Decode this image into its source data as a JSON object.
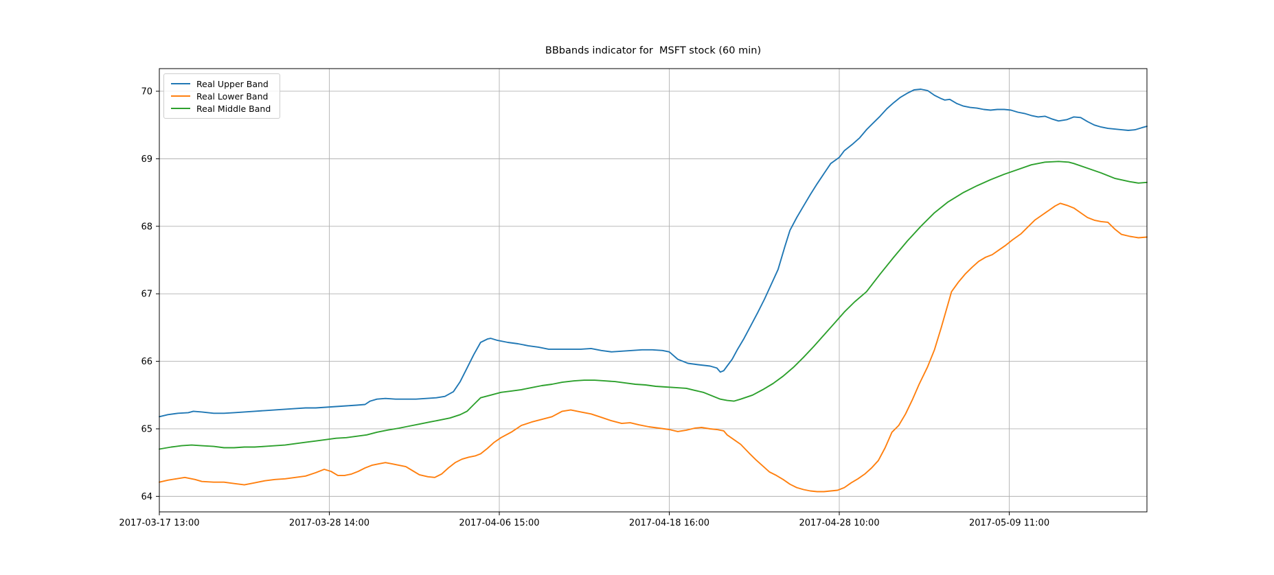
{
  "page": {
    "background": "#ffffff"
  },
  "chart_data": {
    "type": "line",
    "title": "BBbands indicator for  MSFT stock (60 min)",
    "xlabel": "",
    "ylabel": "",
    "grid": true,
    "grid_color": "#b0b0b0",
    "spine_color": "#000000",
    "legend": {
      "position": "upper-left",
      "entries": [
        "Real Upper Band",
        "Real Lower Band",
        "Real Middle Band"
      ]
    },
    "x_axis": {
      "unit": "tick-interval units (0 = first labeled tick, 1 per labeled tick, 60-min bars)",
      "range": [
        0,
        5.81
      ],
      "tick_positions": [
        0,
        1,
        2,
        3,
        4,
        5
      ],
      "tick_labels": [
        "2017-03-17 13:00",
        "2017-03-28 14:00",
        "2017-04-06 15:00",
        "2017-04-18 16:00",
        "2017-04-28 10:00",
        "2017-05-09 11:00"
      ]
    },
    "y_axis": {
      "unit": "price (USD)",
      "range": [
        63.77,
        70.335
      ],
      "tick_values": [
        64,
        65,
        66,
        67,
        68,
        69,
        70
      ],
      "tick_labels": [
        "64",
        "65",
        "66",
        "67",
        "68",
        "69",
        "70"
      ]
    },
    "series": [
      {
        "name": "Real Upper Band",
        "color": "#1f77b4",
        "x": [
          0,
          0.05,
          0.11,
          0.17,
          0.2,
          0.25,
          0.32,
          0.38,
          0.44,
          0.5,
          0.56,
          0.62,
          0.68,
          0.74,
          0.8,
          0.86,
          0.92,
          0.98,
          1.04,
          1.1,
          1.16,
          1.21,
          1.24,
          1.28,
          1.33,
          1.39,
          1.45,
          1.51,
          1.57,
          1.63,
          1.68,
          1.73,
          1.77,
          1.81,
          1.85,
          1.89,
          1.93,
          1.95,
          1.99,
          2.05,
          2.11,
          2.17,
          2.23,
          2.29,
          2.35,
          2.42,
          2.48,
          2.54,
          2.6,
          2.66,
          2.72,
          2.78,
          2.84,
          2.9,
          2.96,
          3.0,
          3.05,
          3.11,
          3.17,
          3.24,
          3.28,
          3.3,
          3.32,
          3.34,
          3.37,
          3.4,
          3.44,
          3.48,
          3.52,
          3.56,
          3.6,
          3.64,
          3.68,
          3.71,
          3.75,
          3.79,
          3.83,
          3.87,
          3.91,
          3.95,
          4.0,
          4.03,
          4.08,
          4.12,
          4.16,
          4.2,
          4.24,
          4.28,
          4.32,
          4.36,
          4.4,
          4.44,
          4.48,
          4.52,
          4.56,
          4.6,
          4.62,
          4.65,
          4.69,
          4.73,
          4.77,
          4.81,
          4.85,
          4.89,
          4.93,
          4.97,
          5.01,
          5.05,
          5.09,
          5.13,
          5.17,
          5.21,
          5.25,
          5.29,
          5.34,
          5.38,
          5.42,
          5.46,
          5.5,
          5.54,
          5.58,
          5.62,
          5.66,
          5.7,
          5.74,
          5.78,
          5.81
        ],
        "y": [
          65.18,
          65.21,
          65.23,
          65.24,
          65.26,
          65.25,
          65.23,
          65.23,
          65.24,
          65.25,
          65.26,
          65.27,
          65.28,
          65.29,
          65.3,
          65.31,
          65.31,
          65.32,
          65.33,
          65.34,
          65.35,
          65.36,
          65.41,
          65.44,
          65.45,
          65.44,
          65.44,
          65.44,
          65.45,
          65.46,
          65.48,
          65.55,
          65.7,
          65.9,
          66.1,
          66.28,
          66.33,
          66.34,
          66.31,
          66.28,
          66.26,
          66.23,
          66.21,
          66.18,
          66.18,
          66.18,
          66.18,
          66.19,
          66.16,
          66.14,
          66.15,
          66.16,
          66.17,
          66.17,
          66.16,
          66.14,
          66.03,
          65.97,
          65.95,
          65.93,
          65.9,
          65.84,
          65.86,
          65.93,
          66.03,
          66.17,
          66.34,
          66.53,
          66.72,
          66.92,
          67.14,
          67.36,
          67.7,
          67.94,
          68.13,
          68.3,
          68.47,
          68.63,
          68.78,
          68.93,
          69.02,
          69.12,
          69.22,
          69.31,
          69.43,
          69.53,
          69.63,
          69.74,
          69.83,
          69.91,
          69.97,
          70.02,
          70.03,
          70.01,
          69.94,
          69.89,
          69.87,
          69.88,
          69.82,
          69.78,
          69.76,
          69.75,
          69.73,
          69.72,
          69.73,
          69.73,
          69.72,
          69.69,
          69.67,
          69.64,
          69.62,
          69.63,
          69.59,
          69.56,
          69.58,
          69.62,
          69.61,
          69.55,
          69.5,
          69.47,
          69.45,
          69.44,
          69.43,
          69.42,
          69.43,
          69.46,
          69.48
        ]
      },
      {
        "name": "Real Lower Band",
        "color": "#ff7f0e",
        "x": [
          0,
          0.05,
          0.1,
          0.15,
          0.21,
          0.25,
          0.32,
          0.38,
          0.44,
          0.5,
          0.56,
          0.62,
          0.68,
          0.74,
          0.8,
          0.86,
          0.92,
          0.97,
          1.01,
          1.05,
          1.09,
          1.13,
          1.17,
          1.21,
          1.25,
          1.29,
          1.33,
          1.37,
          1.41,
          1.45,
          1.49,
          1.53,
          1.58,
          1.62,
          1.66,
          1.7,
          1.74,
          1.78,
          1.82,
          1.86,
          1.89,
          1.93,
          1.97,
          2.01,
          2.07,
          2.13,
          2.19,
          2.25,
          2.31,
          2.37,
          2.42,
          2.48,
          2.54,
          2.6,
          2.66,
          2.72,
          2.77,
          2.82,
          2.88,
          2.94,
          3.0,
          3.05,
          3.1,
          3.15,
          3.19,
          3.24,
          3.28,
          3.32,
          3.34,
          3.38,
          3.42,
          3.47,
          3.51,
          3.55,
          3.59,
          3.63,
          3.67,
          3.71,
          3.75,
          3.79,
          3.83,
          3.87,
          3.91,
          3.95,
          3.99,
          4.03,
          4.07,
          4.11,
          4.15,
          4.19,
          4.23,
          4.27,
          4.31,
          4.35,
          4.39,
          4.43,
          4.47,
          4.52,
          4.56,
          4.6,
          4.64,
          4.66,
          4.7,
          4.74,
          4.78,
          4.82,
          4.86,
          4.9,
          4.94,
          4.98,
          5.02,
          5.07,
          5.11,
          5.15,
          5.19,
          5.23,
          5.27,
          5.3,
          5.34,
          5.38,
          5.42,
          5.46,
          5.5,
          5.54,
          5.58,
          5.62,
          5.66,
          5.71,
          5.76,
          5.81
        ],
        "y": [
          64.21,
          64.24,
          64.26,
          64.28,
          64.25,
          64.22,
          64.21,
          64.21,
          64.19,
          64.17,
          64.2,
          64.23,
          64.25,
          64.26,
          64.28,
          64.3,
          64.35,
          64.4,
          64.37,
          64.31,
          64.31,
          64.33,
          64.37,
          64.42,
          64.46,
          64.48,
          64.5,
          64.48,
          64.46,
          64.44,
          64.38,
          64.32,
          64.29,
          64.28,
          64.33,
          64.42,
          64.5,
          64.55,
          64.58,
          64.6,
          64.63,
          64.71,
          64.8,
          64.87,
          64.95,
          65.05,
          65.1,
          65.14,
          65.18,
          65.26,
          65.28,
          65.25,
          65.22,
          65.17,
          65.12,
          65.08,
          65.09,
          65.06,
          65.03,
          65.01,
          64.99,
          64.96,
          64.98,
          65.01,
          65.02,
          65.0,
          64.99,
          64.97,
          64.91,
          64.84,
          64.77,
          64.64,
          64.54,
          64.45,
          64.36,
          64.31,
          64.25,
          64.18,
          64.13,
          64.1,
          64.08,
          64.07,
          64.07,
          64.08,
          64.09,
          64.13,
          64.2,
          64.26,
          64.33,
          64.42,
          64.53,
          64.72,
          64.95,
          65.05,
          65.22,
          65.43,
          65.66,
          65.92,
          66.17,
          66.5,
          66.85,
          67.03,
          67.17,
          67.29,
          67.39,
          67.48,
          67.54,
          67.58,
          67.65,
          67.72,
          67.8,
          67.89,
          67.99,
          68.09,
          68.16,
          68.23,
          68.3,
          68.34,
          68.31,
          68.27,
          68.2,
          68.13,
          68.09,
          68.07,
          68.06,
          67.96,
          67.88,
          67.85,
          67.83,
          67.84
        ]
      },
      {
        "name": "Real Middle Band",
        "color": "#2ca02c",
        "x": [
          0,
          0.07,
          0.13,
          0.19,
          0.25,
          0.32,
          0.38,
          0.44,
          0.5,
          0.56,
          0.62,
          0.68,
          0.74,
          0.8,
          0.86,
          0.92,
          0.98,
          1.04,
          1.1,
          1.16,
          1.22,
          1.28,
          1.34,
          1.41,
          1.47,
          1.53,
          1.59,
          1.65,
          1.71,
          1.77,
          1.81,
          1.85,
          1.89,
          1.95,
          2.01,
          2.07,
          2.13,
          2.19,
          2.25,
          2.31,
          2.37,
          2.44,
          2.5,
          2.56,
          2.62,
          2.68,
          2.74,
          2.8,
          2.86,
          2.92,
          2.98,
          3.04,
          3.1,
          3.15,
          3.2,
          3.25,
          3.3,
          3.34,
          3.38,
          3.42,
          3.49,
          3.55,
          3.61,
          3.67,
          3.73,
          3.79,
          3.85,
          3.91,
          3.97,
          4.03,
          4.09,
          4.16,
          4.24,
          4.32,
          4.4,
          4.48,
          4.56,
          4.64,
          4.73,
          4.81,
          4.89,
          4.97,
          5.05,
          5.13,
          5.21,
          5.29,
          5.35,
          5.38,
          5.46,
          5.54,
          5.62,
          5.71,
          5.76,
          5.81
        ],
        "y": [
          64.7,
          64.73,
          64.75,
          64.76,
          64.75,
          64.74,
          64.72,
          64.72,
          64.73,
          64.73,
          64.74,
          64.75,
          64.76,
          64.78,
          64.8,
          64.82,
          64.84,
          64.86,
          64.87,
          64.89,
          64.91,
          64.95,
          64.98,
          65.01,
          65.04,
          65.07,
          65.1,
          65.13,
          65.16,
          65.21,
          65.26,
          65.36,
          65.46,
          65.5,
          65.54,
          65.56,
          65.58,
          65.61,
          65.64,
          65.66,
          65.69,
          65.71,
          65.72,
          65.72,
          65.71,
          65.7,
          65.68,
          65.66,
          65.65,
          65.63,
          65.62,
          65.61,
          65.6,
          65.57,
          65.54,
          65.49,
          65.44,
          65.42,
          65.41,
          65.44,
          65.5,
          65.58,
          65.67,
          65.78,
          65.91,
          66.06,
          66.22,
          66.39,
          66.56,
          66.73,
          66.88,
          67.03,
          67.29,
          67.54,
          67.78,
          68.0,
          68.2,
          68.36,
          68.5,
          68.6,
          68.69,
          68.77,
          68.84,
          68.91,
          68.95,
          68.96,
          68.95,
          68.93,
          68.86,
          68.79,
          68.71,
          68.66,
          68.64,
          68.65
        ]
      }
    ]
  }
}
